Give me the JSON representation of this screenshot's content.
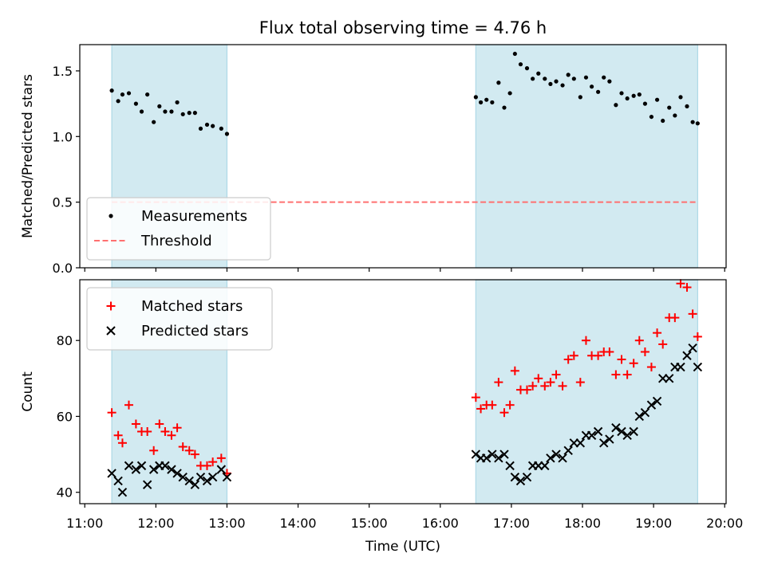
{
  "chart_data": {
    "type": "scatter",
    "title": "Flux total observing time = 4.76 h",
    "xlabel": "Time (UTC)",
    "x_ticks": [
      "11:00",
      "12:00",
      "13:00",
      "14:00",
      "15:00",
      "16:00",
      "17:00",
      "18:00",
      "19:00",
      "20:00"
    ],
    "x_range_hours": [
      10.93,
      20.02
    ],
    "shaded_intervals_hours": [
      [
        11.38,
        13.0
      ],
      [
        16.5,
        19.62
      ]
    ],
    "shade_color": "#add8e6",
    "panels": [
      {
        "ylabel": "Matched/Predicted stars",
        "ylim": [
          0,
          1.7
        ],
        "y_ticks": [
          "0.0",
          "0.5",
          "1.0",
          "1.5"
        ],
        "y_tick_values": [
          0,
          0.5,
          1.0,
          1.5
        ],
        "legend_placement": "lower-left",
        "threshold": {
          "name": "Threshold",
          "value": 0.5,
          "x_range_hours": [
            11.38,
            19.62
          ],
          "color": "#ff7070"
        },
        "series": [
          {
            "name": "Measurements",
            "marker": "dot",
            "color": "#000000",
            "points": [
              [
                11.38,
                1.35
              ],
              [
                11.47,
                1.27
              ],
              [
                11.53,
                1.32
              ],
              [
                11.62,
                1.33
              ],
              [
                11.72,
                1.25
              ],
              [
                11.8,
                1.19
              ],
              [
                11.88,
                1.32
              ],
              [
                11.97,
                1.11
              ],
              [
                12.05,
                1.23
              ],
              [
                12.13,
                1.19
              ],
              [
                12.22,
                1.19
              ],
              [
                12.3,
                1.26
              ],
              [
                12.38,
                1.17
              ],
              [
                12.47,
                1.18
              ],
              [
                12.55,
                1.18
              ],
              [
                12.63,
                1.06
              ],
              [
                12.72,
                1.09
              ],
              [
                12.8,
                1.08
              ],
              [
                12.92,
                1.06
              ],
              [
                13.0,
                1.02
              ],
              [
                16.5,
                1.3
              ],
              [
                16.57,
                1.26
              ],
              [
                16.65,
                1.28
              ],
              [
                16.73,
                1.26
              ],
              [
                16.82,
                1.41
              ],
              [
                16.9,
                1.22
              ],
              [
                16.98,
                1.33
              ],
              [
                17.05,
                1.63
              ],
              [
                17.13,
                1.55
              ],
              [
                17.22,
                1.52
              ],
              [
                17.3,
                1.44
              ],
              [
                17.38,
                1.48
              ],
              [
                17.47,
                1.44
              ],
              [
                17.55,
                1.4
              ],
              [
                17.63,
                1.42
              ],
              [
                17.72,
                1.39
              ],
              [
                17.8,
                1.47
              ],
              [
                17.88,
                1.44
              ],
              [
                17.97,
                1.3
              ],
              [
                18.05,
                1.45
              ],
              [
                18.13,
                1.38
              ],
              [
                18.22,
                1.34
              ],
              [
                18.3,
                1.45
              ],
              [
                18.38,
                1.42
              ],
              [
                18.47,
                1.24
              ],
              [
                18.55,
                1.33
              ],
              [
                18.63,
                1.29
              ],
              [
                18.72,
                1.31
              ],
              [
                18.8,
                1.32
              ],
              [
                18.88,
                1.25
              ],
              [
                18.97,
                1.15
              ],
              [
                19.05,
                1.28
              ],
              [
                19.13,
                1.12
              ],
              [
                19.22,
                1.22
              ],
              [
                19.3,
                1.16
              ],
              [
                19.38,
                1.3
              ],
              [
                19.47,
                1.23
              ],
              [
                19.55,
                1.11
              ],
              [
                19.62,
                1.1
              ]
            ]
          }
        ]
      },
      {
        "ylabel": "Count",
        "ylim": [
          37,
          96
        ],
        "y_ticks": [
          "40",
          "60",
          "80"
        ],
        "y_tick_values": [
          40,
          60,
          80
        ],
        "legend_placement": "upper-left",
        "series": [
          {
            "name": "Matched stars",
            "marker": "plus",
            "color": "#ff0000",
            "points": [
              [
                11.38,
                61
              ],
              [
                11.47,
                55
              ],
              [
                11.53,
                53
              ],
              [
                11.62,
                63
              ],
              [
                11.72,
                58
              ],
              [
                11.8,
                56
              ],
              [
                11.88,
                56
              ],
              [
                11.97,
                51
              ],
              [
                12.05,
                58
              ],
              [
                12.13,
                56
              ],
              [
                12.22,
                55
              ],
              [
                12.3,
                57
              ],
              [
                12.38,
                52
              ],
              [
                12.47,
                51
              ],
              [
                12.55,
                50
              ],
              [
                12.63,
                47
              ],
              [
                12.72,
                47
              ],
              [
                12.8,
                48
              ],
              [
                12.92,
                49
              ],
              [
                13.0,
                45
              ],
              [
                16.5,
                65
              ],
              [
                16.57,
                62
              ],
              [
                16.65,
                63
              ],
              [
                16.73,
                63
              ],
              [
                16.82,
                69
              ],
              [
                16.9,
                61
              ],
              [
                16.98,
                63
              ],
              [
                17.05,
                72
              ],
              [
                17.13,
                67
              ],
              [
                17.22,
                67
              ],
              [
                17.3,
                68
              ],
              [
                17.38,
                70
              ],
              [
                17.47,
                68
              ],
              [
                17.55,
                69
              ],
              [
                17.63,
                71
              ],
              [
                17.72,
                68
              ],
              [
                17.8,
                75
              ],
              [
                17.88,
                76
              ],
              [
                17.97,
                69
              ],
              [
                18.05,
                80
              ],
              [
                18.13,
                76
              ],
              [
                18.22,
                76
              ],
              [
                18.3,
                77
              ],
              [
                18.38,
                77
              ],
              [
                18.47,
                71
              ],
              [
                18.55,
                75
              ],
              [
                18.63,
                71
              ],
              [
                18.72,
                74
              ],
              [
                18.8,
                80
              ],
              [
                18.88,
                77
              ],
              [
                18.97,
                73
              ],
              [
                19.05,
                82
              ],
              [
                19.13,
                79
              ],
              [
                19.22,
                86
              ],
              [
                19.3,
                86
              ],
              [
                19.38,
                95
              ],
              [
                19.47,
                94
              ],
              [
                19.55,
                87
              ],
              [
                19.62,
                81
              ]
            ]
          },
          {
            "name": "Predicted stars",
            "marker": "x",
            "color": "#000000",
            "points": [
              [
                11.38,
                45
              ],
              [
                11.47,
                43
              ],
              [
                11.53,
                40
              ],
              [
                11.62,
                47
              ],
              [
                11.72,
                46
              ],
              [
                11.8,
                47
              ],
              [
                11.88,
                42
              ],
              [
                11.97,
                46
              ],
              [
                12.05,
                47
              ],
              [
                12.13,
                47
              ],
              [
                12.22,
                46
              ],
              [
                12.3,
                45
              ],
              [
                12.38,
                44
              ],
              [
                12.47,
                43
              ],
              [
                12.55,
                42
              ],
              [
                12.63,
                44
              ],
              [
                12.72,
                43
              ],
              [
                12.8,
                44
              ],
              [
                12.92,
                46
              ],
              [
                13.0,
                44
              ],
              [
                16.5,
                50
              ],
              [
                16.57,
                49
              ],
              [
                16.65,
                49
              ],
              [
                16.73,
                50
              ],
              [
                16.82,
                49
              ],
              [
                16.9,
                50
              ],
              [
                16.98,
                47
              ],
              [
                17.05,
                44
              ],
              [
                17.13,
                43
              ],
              [
                17.22,
                44
              ],
              [
                17.3,
                47
              ],
              [
                17.38,
                47
              ],
              [
                17.47,
                47
              ],
              [
                17.55,
                49
              ],
              [
                17.63,
                50
              ],
              [
                17.72,
                49
              ],
              [
                17.8,
                51
              ],
              [
                17.88,
                53
              ],
              [
                17.97,
                53
              ],
              [
                18.05,
                55
              ],
              [
                18.13,
                55
              ],
              [
                18.22,
                56
              ],
              [
                18.3,
                53
              ],
              [
                18.38,
                54
              ],
              [
                18.47,
                57
              ],
              [
                18.55,
                56
              ],
              [
                18.63,
                55
              ],
              [
                18.72,
                56
              ],
              [
                18.8,
                60
              ],
              [
                18.88,
                61
              ],
              [
                18.97,
                63
              ],
              [
                19.05,
                64
              ],
              [
                19.13,
                70
              ],
              [
                19.22,
                70
              ],
              [
                19.3,
                73
              ],
              [
                19.38,
                73
              ],
              [
                19.47,
                76
              ],
              [
                19.55,
                78
              ],
              [
                19.62,
                73
              ]
            ]
          }
        ]
      }
    ]
  }
}
